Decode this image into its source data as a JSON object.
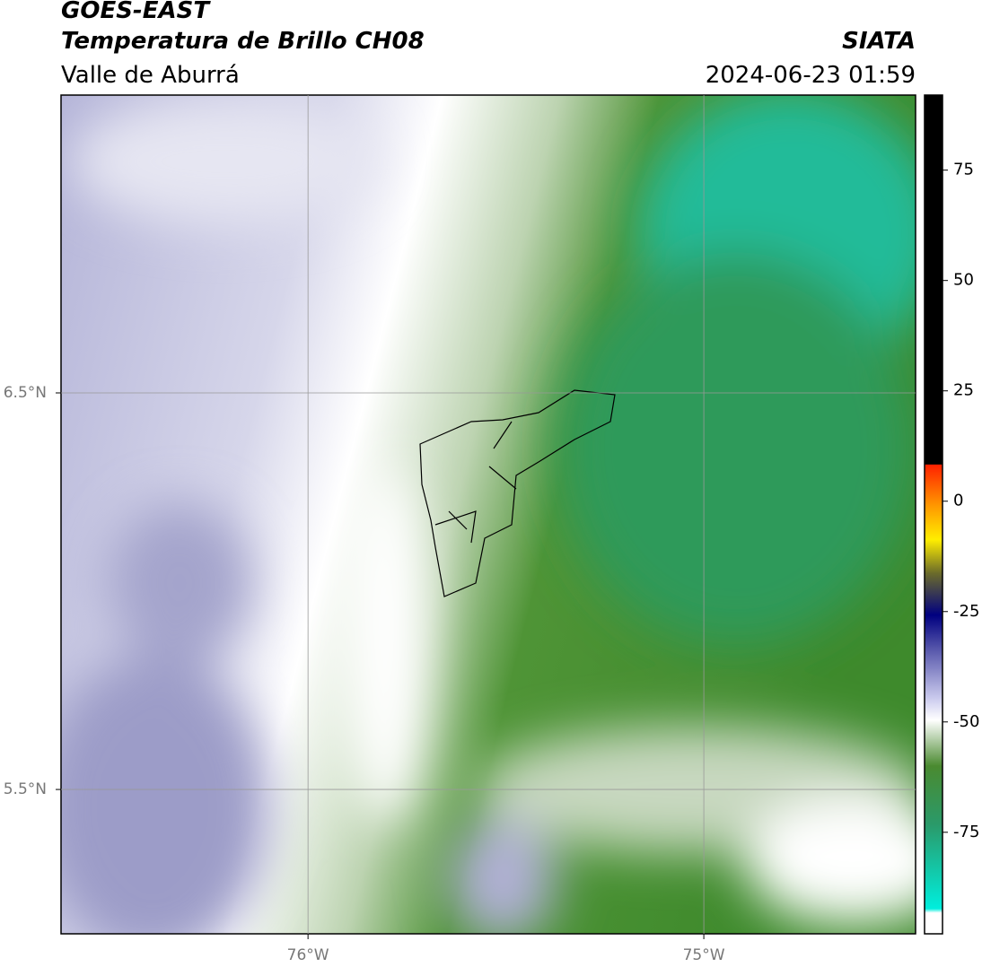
{
  "header": {
    "title": "GOES-EAST",
    "subtitle": "Temperatura de Brillo CH08",
    "region": "Valle de Aburrá",
    "source": "SIATA",
    "timestamp": "2024-06-23 01:59"
  },
  "map": {
    "xlim": [
      -76.624,
      -74.465
    ],
    "ylim": [
      5.136,
      7.251
    ],
    "xticks": [
      {
        "value": -76,
        "label": "76°W"
      },
      {
        "value": -75,
        "label": "75°W"
      }
    ],
    "yticks": [
      {
        "value": 6.5,
        "label": "6.5°N"
      },
      {
        "value": 5.5,
        "label": "5.5°N"
      }
    ],
    "grid": true
  },
  "colorbar": {
    "ylim": [
      -98,
      92
    ],
    "yticks": [
      75,
      50,
      25,
      0,
      -25,
      -50,
      -75
    ]
  }
}
